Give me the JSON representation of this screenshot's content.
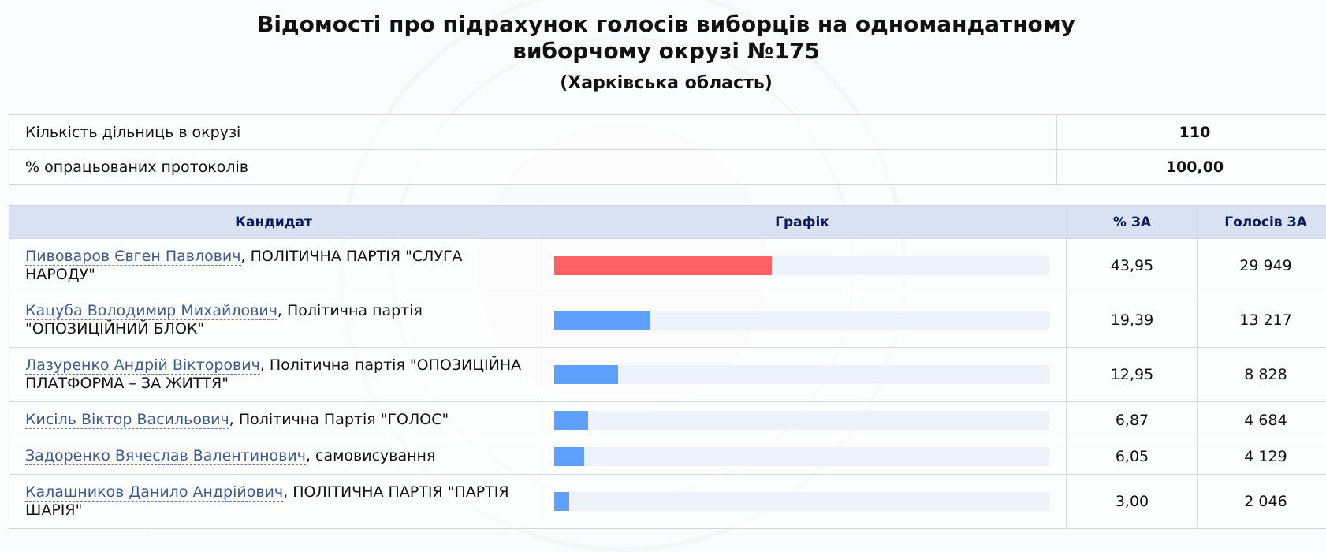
{
  "header": {
    "title_line1": "Відомості про підрахунок голосів виборців на одномандатному",
    "title_line2": "виборчому окрузі №175",
    "subtitle": "(Харківська область)"
  },
  "summary": [
    {
      "label": "Кількість дільниць в окрузі",
      "value": "110"
    },
    {
      "label": "% опрацьованих протоколів",
      "value": "100,00"
    }
  ],
  "table": {
    "headers": {
      "candidate": "Кандидат",
      "graph": "Графік",
      "percent": "% ЗА",
      "votes": "Голосів ЗА"
    },
    "rows": [
      {
        "name": "Пивоваров Євген Павлович",
        "party": ", ПОЛІТИЧНА ПАРТІЯ \"СЛУГА НАРОДУ\"",
        "percent": "43,95",
        "votes": "29 949",
        "bar": 43.95,
        "color": "#ff6166"
      },
      {
        "name": "Кацуба Володимир Михайлович",
        "party": ", Політична партія \"ОПОЗИЦІЙНИЙ БЛОК\"",
        "percent": "19,39",
        "votes": "13 217",
        "bar": 19.39,
        "color": "#5fa0ff"
      },
      {
        "name": "Лазуренко Андрій Вікторович",
        "party": ", Політична партія \"ОПОЗИЦІЙНА ПЛАТФОРМА – ЗА ЖИТТЯ\"",
        "percent": "12,95",
        "votes": "8 828",
        "bar": 12.95,
        "color": "#5fa0ff"
      },
      {
        "name": "Кисіль Віктор Васильович",
        "party": ", Політична Партія \"ГОЛОС\"",
        "percent": "6,87",
        "votes": "4 684",
        "bar": 6.87,
        "color": "#5fa0ff"
      },
      {
        "name": "Задоренко Вячеслав Валентинович",
        "party": ", самовисування",
        "percent": "6,05",
        "votes": "4 129",
        "bar": 6.05,
        "color": "#5fa0ff"
      },
      {
        "name": "Калашников Данило Андрійович",
        "party": ", ПОЛІТИЧНА ПАРТІЯ \"ПАРТІЯ ШАРІЯ\"",
        "percent": "3,00",
        "votes": "2 046",
        "bar": 3.0,
        "color": "#5fa0ff"
      }
    ]
  }
}
